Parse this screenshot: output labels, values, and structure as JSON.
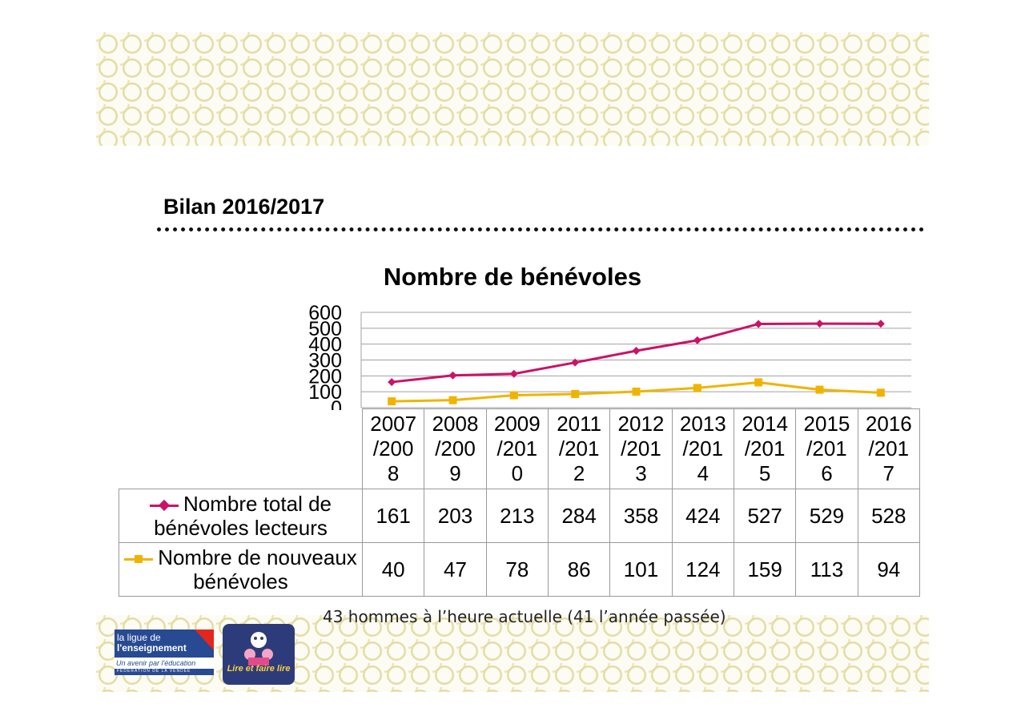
{
  "slide_title": "Bilan 2016/2017",
  "footnote": "43 hommes à l’heure actuelle (41 l’année passée)",
  "logos": {
    "ligue": {
      "line1": "la ligue de",
      "line2": "l'enseignement",
      "tagline": "Un avenir par l'éducation populaire",
      "federation": "FÉDÉRATION DE LA VENDÉE"
    },
    "lire": {
      "text": "Lire et faire lire"
    }
  },
  "chart_data": {
    "type": "line",
    "title": "Nombre de bénévoles",
    "xlabel": "",
    "ylabel": "",
    "ylim": [
      0,
      600
    ],
    "y_ticks": [
      "600",
      "500",
      "400",
      "300",
      "200",
      "100",
      "0"
    ],
    "grid": true,
    "legend_placement": "data-table",
    "categories": [
      [
        "2007",
        "/200",
        "8"
      ],
      [
        "2008",
        "/200",
        "9"
      ],
      [
        "2009",
        "/201",
        "0"
      ],
      [
        "2011",
        "/201",
        "2"
      ],
      [
        "2012",
        "/201",
        "3"
      ],
      [
        "2013",
        "/201",
        "4"
      ],
      [
        "2014",
        "/201",
        "5"
      ],
      [
        "2015",
        "/201",
        "6"
      ],
      [
        "2016",
        "/201",
        "7"
      ]
    ],
    "series": [
      {
        "name": "Nombre total de bénévoles lecteurs",
        "color": "#cc1266",
        "marker": "diamond",
        "values": [
          161,
          203,
          213,
          284,
          358,
          424,
          527,
          529,
          528
        ]
      },
      {
        "name": "Nombre de nouveaux bénévoles",
        "color": "#f0b400",
        "marker": "square",
        "values": [
          40,
          47,
          78,
          86,
          101,
          124,
          159,
          113,
          94
        ]
      }
    ]
  }
}
